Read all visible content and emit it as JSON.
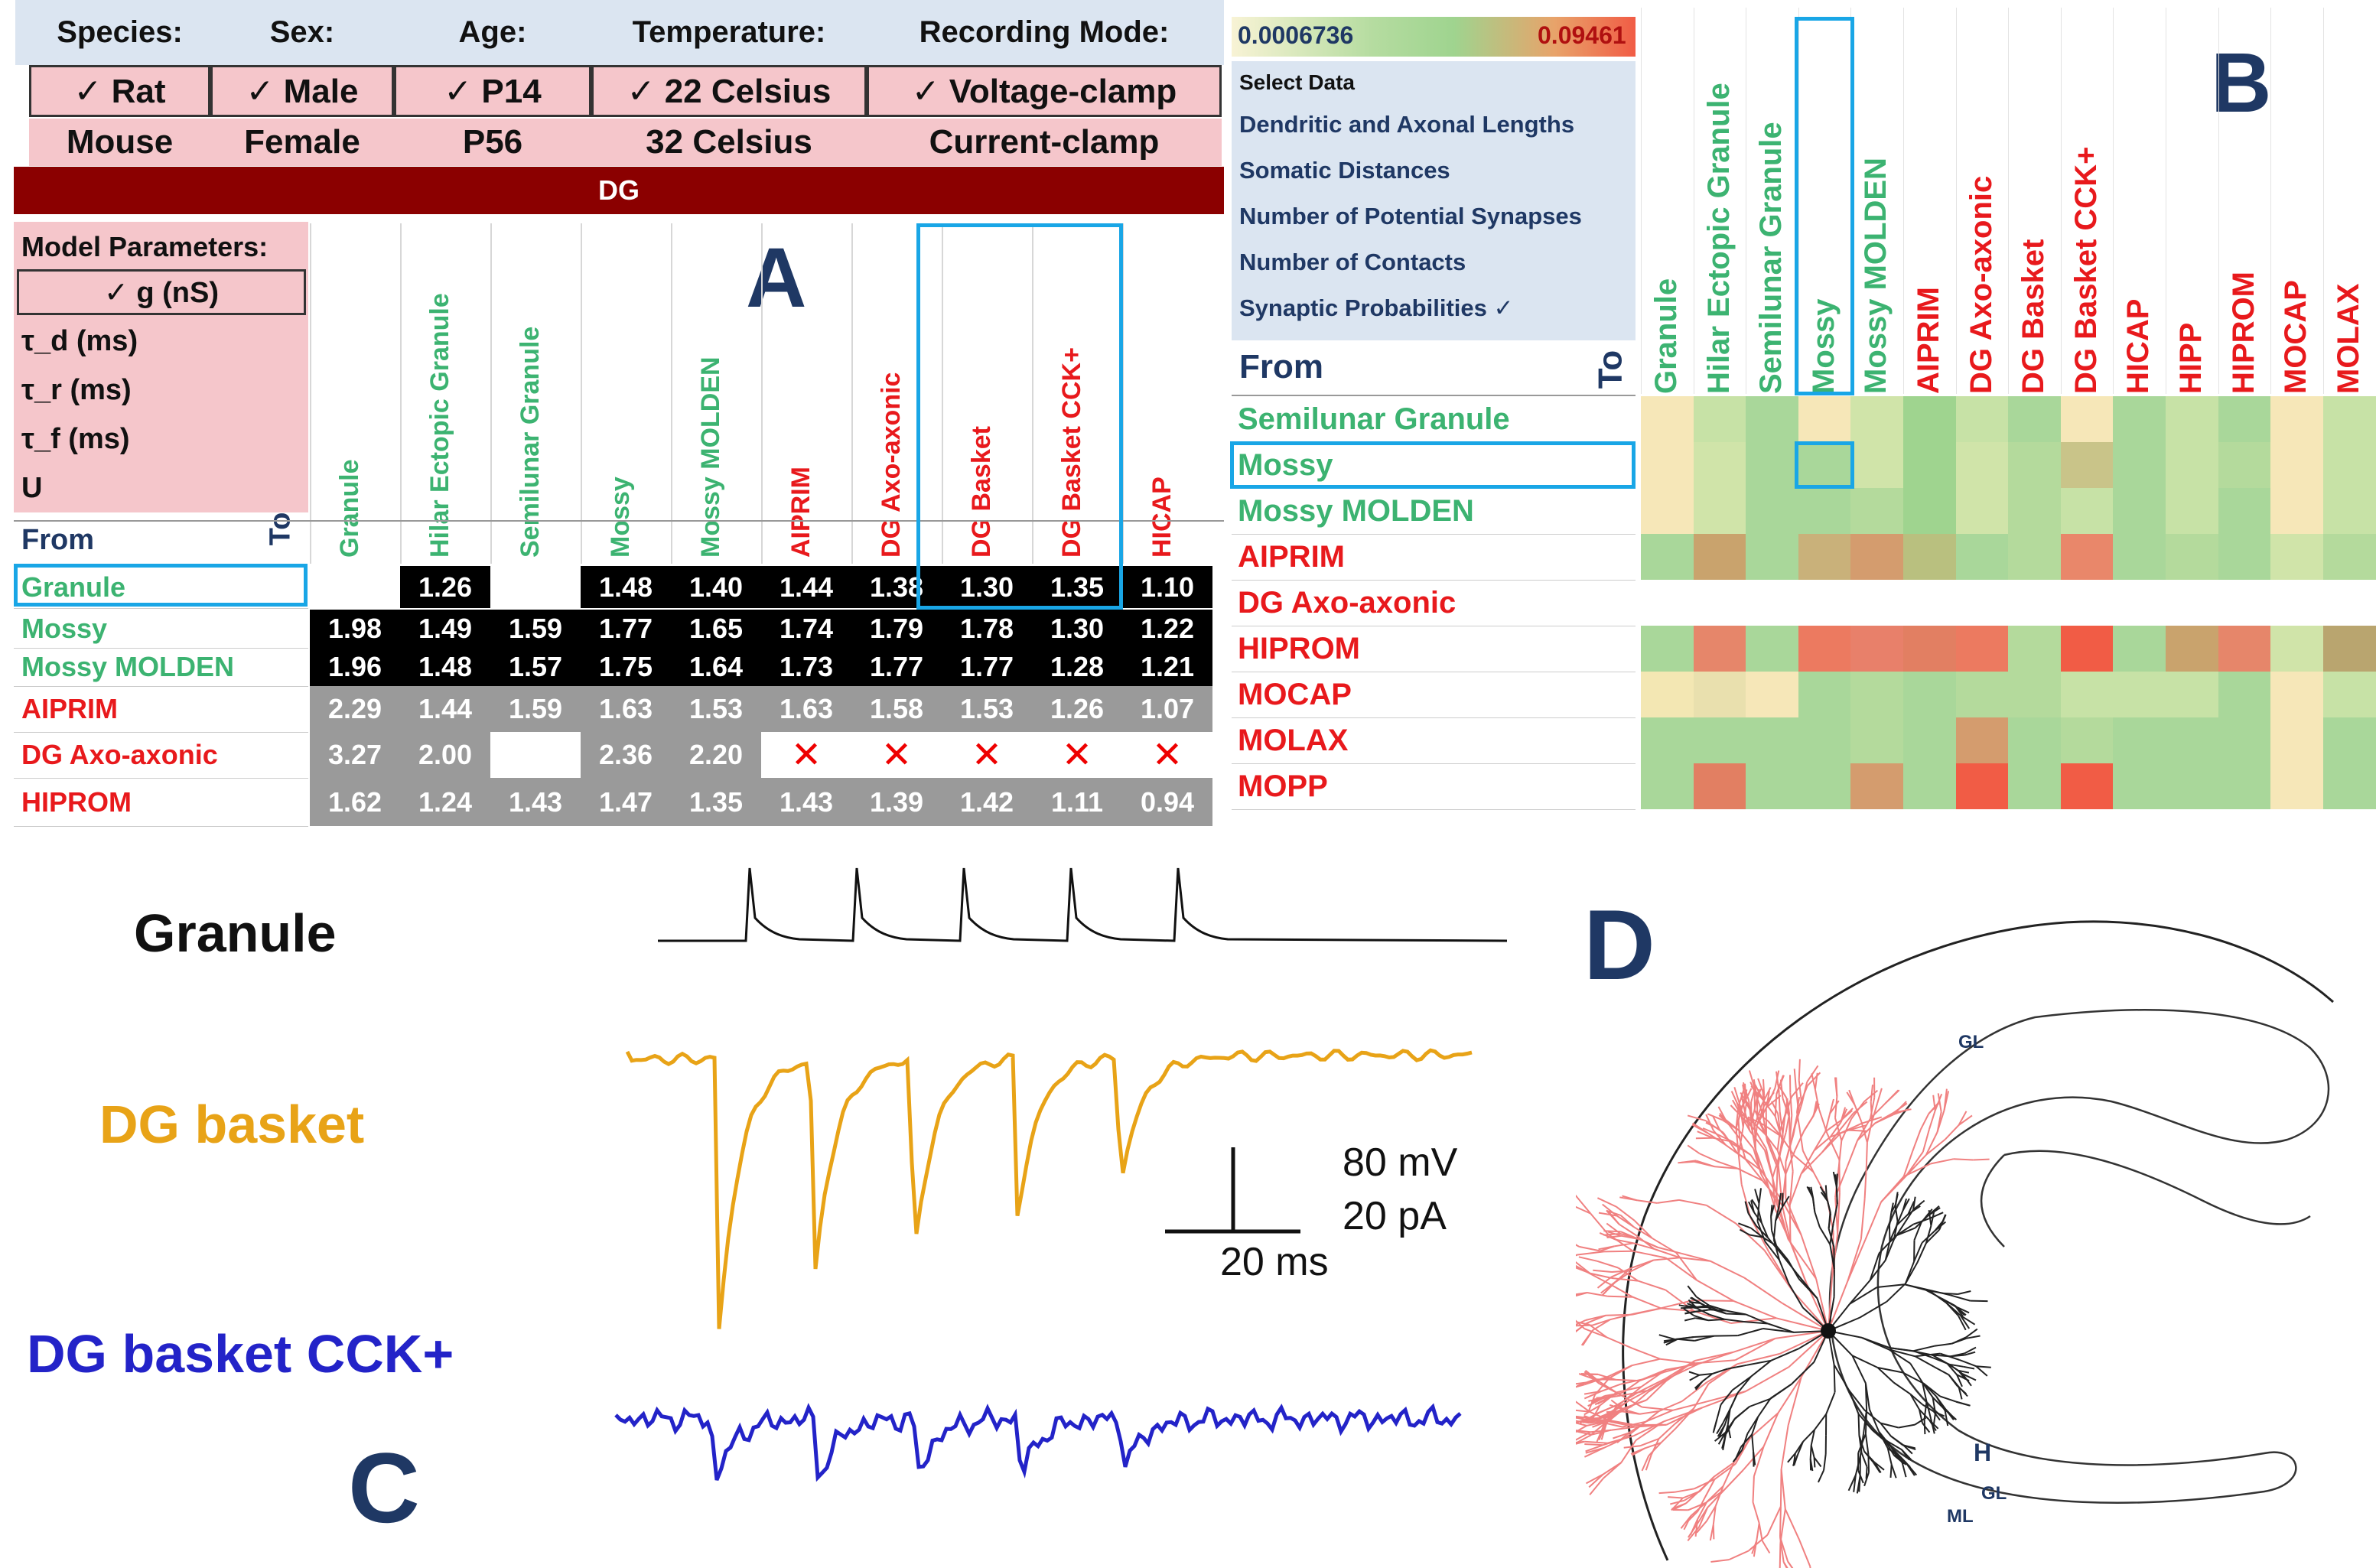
{
  "panelA": {
    "letter": "A",
    "criteria": {
      "headers": [
        "Species:",
        "Sex:",
        "Age:",
        "Temperature:",
        "Recording Mode:"
      ],
      "selected": [
        "✓ Rat",
        "✓ Male",
        "✓ P14",
        "✓ 22 Celsius",
        "✓ Voltage-clamp"
      ],
      "alternatives": [
        "Mouse",
        "Female",
        "P56",
        "32 Celsius",
        "Current-clamp"
      ]
    },
    "region": "DG",
    "parameters": {
      "title": "Model Parameters:",
      "items": [
        "✓ g (nS)",
        "τ_d (ms)",
        "τ_r (ms)",
        "τ_f (ms)",
        "U"
      ]
    },
    "from_label": "From",
    "to_label": "To",
    "columns": [
      {
        "label": "Granule",
        "color": "#3cb371"
      },
      {
        "label": "Hilar Ectopic Granule",
        "color": "#3cb371"
      },
      {
        "label": "Semilunar Granule",
        "color": "#3cb371"
      },
      {
        "label": "Mossy",
        "color": "#3cb371"
      },
      {
        "label": "Mossy MOLDEN",
        "color": "#3cb371"
      },
      {
        "label": "AIPRIM",
        "color": "#e8191c"
      },
      {
        "label": "DG Axo-axonic",
        "color": "#e8191c"
      },
      {
        "label": "DG Basket",
        "color": "#e8191c"
      },
      {
        "label": "DG Basket CCK+",
        "color": "#e8191c"
      },
      {
        "label": "HICAP",
        "color": "#e8191c"
      }
    ],
    "rows": [
      {
        "label": "Granule",
        "color": "#3cb371",
        "bg": "#000000",
        "values": [
          "",
          "1.26",
          "",
          "1.48",
          "1.40",
          "1.44",
          "1.38",
          "1.30",
          "1.35",
          "1.10"
        ]
      },
      {
        "label": "Mossy",
        "color": "#3cb371",
        "bg": "#000000",
        "values": [
          "1.98",
          "1.49",
          "1.59",
          "1.77",
          "1.65",
          "1.74",
          "1.79",
          "1.78",
          "1.30",
          "1.22"
        ]
      },
      {
        "label": "Mossy MOLDEN",
        "color": "#3cb371",
        "bg": "#000000",
        "values": [
          "1.96",
          "1.48",
          "1.57",
          "1.75",
          "1.64",
          "1.73",
          "1.77",
          "1.77",
          "1.28",
          "1.21"
        ]
      },
      {
        "label": "AIPRIM",
        "color": "#e8191c",
        "bg": "#9a9a9a",
        "values": [
          "2.29",
          "1.44",
          "1.59",
          "1.63",
          "1.53",
          "1.63",
          "1.58",
          "1.53",
          "1.26",
          "1.07"
        ]
      },
      {
        "label": "DG Axo-axonic",
        "color": "#e8191c",
        "bg": "#9a9a9a",
        "values": [
          "3.27",
          "2.00",
          "",
          "2.36",
          "2.20",
          "✕",
          "✕",
          "✕",
          "✕",
          "✕"
        ]
      },
      {
        "label": "HIPROM",
        "color": "#e8191c",
        "bg": "#9a9a9a",
        "values": [
          "1.62",
          "1.24",
          "1.43",
          "1.47",
          "1.35",
          "1.43",
          "1.39",
          "1.42",
          "1.11",
          "0.94"
        ]
      }
    ]
  },
  "panelB": {
    "letter": "B",
    "scale_min": "0.0006736",
    "scale_max": "0.09461",
    "menu_title": "Select Data",
    "menu_items": [
      "Dendritic and Axonal Lengths",
      "Somatic Distances",
      "Number of Potential Synapses",
      "Number of Contacts",
      "Synaptic Probabilities ✓"
    ],
    "from_label": "From",
    "to_label": "To",
    "columns": [
      {
        "label": "Granule",
        "color": "#3cb371"
      },
      {
        "label": "Hilar Ectopic Granule",
        "color": "#3cb371"
      },
      {
        "label": "Semilunar Granule",
        "color": "#3cb371"
      },
      {
        "label": "Mossy",
        "color": "#3cb371"
      },
      {
        "label": "Mossy MOLDEN",
        "color": "#3cb371"
      },
      {
        "label": "AIPRIM",
        "color": "#e8191c"
      },
      {
        "label": "DG Axo-axonic",
        "color": "#e8191c"
      },
      {
        "label": "DG Basket",
        "color": "#e8191c"
      },
      {
        "label": "DG Basket CCK+",
        "color": "#e8191c"
      },
      {
        "label": "HICAP",
        "color": "#e8191c"
      },
      {
        "label": "HIPP",
        "color": "#e8191c"
      },
      {
        "label": "HIPROM",
        "color": "#e8191c"
      },
      {
        "label": "MOCAP",
        "color": "#e8191c"
      },
      {
        "label": "MOLAX",
        "color": "#e8191c"
      }
    ],
    "rows": [
      {
        "label": "Semilunar Granule",
        "color": "#3cb371"
      },
      {
        "label": "Mossy",
        "color": "#3cb371"
      },
      {
        "label": "Mossy MOLDEN",
        "color": "#3cb371"
      },
      {
        "label": "AIPRIM",
        "color": "#e8191c"
      },
      {
        "label": "DG Axo-axonic",
        "color": "#e8191c"
      },
      {
        "label": "HIPROM",
        "color": "#e8191c"
      },
      {
        "label": "MOCAP",
        "color": "#e8191c"
      },
      {
        "label": "MOLAX",
        "color": "#e8191c"
      },
      {
        "label": "MOPP",
        "color": "#e8191c"
      }
    ],
    "heatmap_colors": [
      [
        "#f6e7b8",
        "#c7e2a6",
        "#a9d79a",
        "#f6e7b8",
        "#d0e4a9",
        "#9fd48f",
        "#c7e2a6",
        "#a9d79a",
        "#f6e7b8",
        "#a9d79a",
        "#c7e2a6",
        "#a9d79a",
        "#f6e7b8",
        "#c7e2a6"
      ],
      [
        "#f6e7b8",
        "#d0e4a9",
        "#a9d79a",
        "#a9d79a",
        "#d0e4a9",
        "#9fd48f",
        "#d0e4a9",
        "#b4da9c",
        "#c9c489",
        "#a9d79a",
        "#c7e2a6",
        "#b4da9c",
        "#f6e7b8",
        "#c7e2a6"
      ],
      [
        "#f6e7b8",
        "#d0e4a9",
        "#a9d79a",
        "#a9d79a",
        "#b4da9c",
        "#9fd48f",
        "#d0e4a9",
        "#b4da9c",
        "#c7e2a6",
        "#a9d79a",
        "#c7e2a6",
        "#a9d79a",
        "#f6e7b8",
        "#c7e2a6"
      ],
      [
        "#a9d79a",
        "#c9a36d",
        "#a9d79a",
        "#c9b17a",
        "#d49c6e",
        "#b9c07f",
        "#a9d79a",
        "#b4da9c",
        "#e9876a",
        "#a9d79a",
        "#b4da9c",
        "#a9d79a",
        "#d0e4a9",
        "#b4da9c"
      ],
      [
        "#ffffff",
        "#ffffff",
        "#ffffff",
        "#ffffff",
        "#ffffff",
        "#ffffff",
        "#ffffff",
        "#ffffff",
        "#ffffff",
        "#ffffff",
        "#ffffff",
        "#ffffff",
        "#ffffff",
        "#ffffff"
      ],
      [
        "#a9d79a",
        "#e6866a",
        "#a9d79a",
        "#ec7a60",
        "#e8806a",
        "#e27f62",
        "#ec7a60",
        "#b4da9c",
        "#f15c45",
        "#a9d79a",
        "#c9a36d",
        "#e6866a",
        "#d0e4a9",
        "#b9a56f"
      ],
      [
        "#f3e7b3",
        "#e9e0ae",
        "#f6e7b8",
        "#a9d79a",
        "#b4da9c",
        "#a9d79a",
        "#b4da9c",
        "#b4da9c",
        "#c7e2a6",
        "#c7e2a6",
        "#c7e2a6",
        "#a9d79a",
        "#f6e7b8",
        "#c7e2a6"
      ],
      [
        "#a9d79a",
        "#a9d79a",
        "#a9d79a",
        "#a9d79a",
        "#b4da9c",
        "#a9d79a",
        "#d49c6e",
        "#a9d79a",
        "#b4da9c",
        "#a9d79a",
        "#a9d79a",
        "#a9d79a",
        "#f6e7b8",
        "#a9d79a"
      ],
      [
        "#a9d79a",
        "#e27f62",
        "#a9d79a",
        "#a9d79a",
        "#d49c6e",
        "#a9d79a",
        "#f15c45",
        "#a9d79a",
        "#f15c45",
        "#a9d79a",
        "#a9d79a",
        "#a9d79a",
        "#f6e7b8",
        "#a9d79a"
      ]
    ]
  },
  "panelC": {
    "letter": "C",
    "traces": [
      {
        "label": "Granule",
        "color": "#111111"
      },
      {
        "label": "DG basket",
        "color": "#e8a317"
      },
      {
        "label": "DG basket CCK+",
        "color": "#2323c8"
      }
    ],
    "scale_voltage": "80 mV",
    "scale_current": "20 pA",
    "scale_time": "20 ms"
  },
  "panelD": {
    "letter": "D",
    "labels": [
      "GL",
      "H",
      "GL",
      "ML"
    ],
    "dendrite_color": "#f08080",
    "axon_color": "#222222"
  }
}
